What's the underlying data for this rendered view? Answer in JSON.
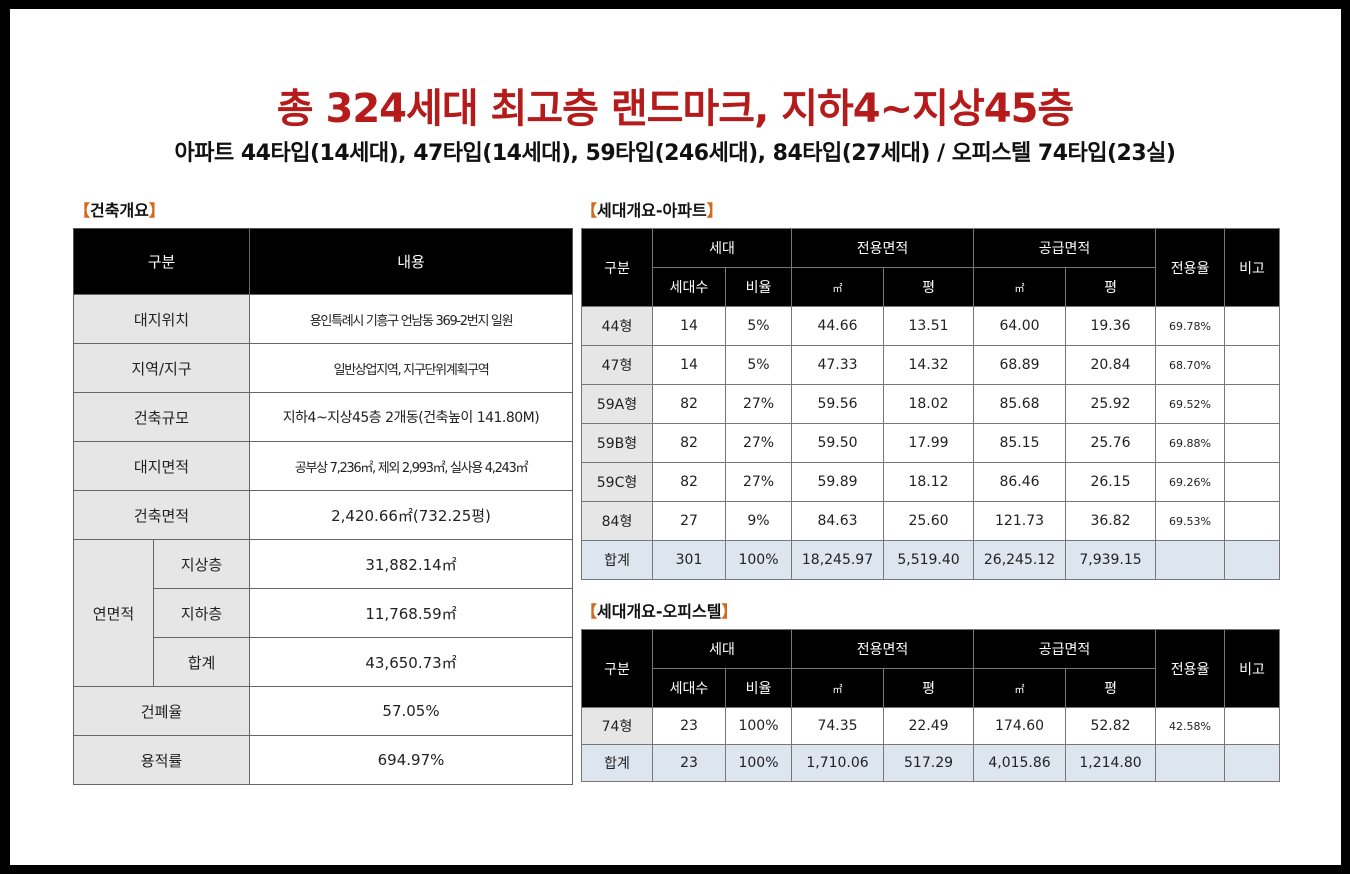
{
  "title": "총 324세대 최고층 랜드마크, 지하4~지상45층",
  "subtitle": "아파트 44타입(14세대), 47타입(14세대), 59타입(246세대), 84타입(27세대) / 오피스텔 74타입(23실)",
  "building": {
    "heading": "건축개요",
    "headers": [
      "구분",
      "내용"
    ],
    "site_location": {
      "label": "대지위치",
      "value": "용인특례시 기흥구 언남동 369-2번지 일원"
    },
    "zone": {
      "label": "지역/지구",
      "value": "일반상업지역, 지구단위계획구역"
    },
    "scale": {
      "label": "건축규모",
      "value": "지하4~지상45층 2개동(건축높이 141.80M)"
    },
    "site_area": {
      "label": "대지면적",
      "value": "공부상 7,236㎡, 제외 2,993㎡, 실사용 4,243㎡"
    },
    "building_area": {
      "label": "건축면적",
      "value": "2,420.66㎡(732.25평)"
    },
    "floor_area": {
      "label": "연면적",
      "above": {
        "label": "지상층",
        "value": "31,882.14㎡"
      },
      "below": {
        "label": "지하층",
        "value": "11,768.59㎡"
      },
      "total": {
        "label": "합계",
        "value": "43,650.73㎡"
      }
    },
    "coverage": {
      "label": "건폐율",
      "value": "57.05%"
    },
    "far": {
      "label": "용적률",
      "value": "694.97%"
    }
  },
  "apartment": {
    "heading": "세대개요-아파트",
    "headers": {
      "type": "구분",
      "household": "세대",
      "exclusive": "전용면적",
      "supply": "공급면적",
      "ratio": "전용율",
      "note": "비고",
      "count": "세대수",
      "share": "비율",
      "m2": "㎡",
      "pyeong": "평"
    },
    "rows": [
      {
        "type": "44형",
        "count": "14",
        "share": "5%",
        "ex_m2": "44.66",
        "ex_py": "13.51",
        "sup_m2": "64.00",
        "sup_py": "19.36",
        "ratio": "69.78%",
        "note": ""
      },
      {
        "type": "47형",
        "count": "14",
        "share": "5%",
        "ex_m2": "47.33",
        "ex_py": "14.32",
        "sup_m2": "68.89",
        "sup_py": "20.84",
        "ratio": "68.70%",
        "note": ""
      },
      {
        "type": "59A형",
        "count": "82",
        "share": "27%",
        "ex_m2": "59.56",
        "ex_py": "18.02",
        "sup_m2": "85.68",
        "sup_py": "25.92",
        "ratio": "69.52%",
        "note": ""
      },
      {
        "type": "59B형",
        "count": "82",
        "share": "27%",
        "ex_m2": "59.50",
        "ex_py": "17.99",
        "sup_m2": "85.15",
        "sup_py": "25.76",
        "ratio": "69.88%",
        "note": ""
      },
      {
        "type": "59C형",
        "count": "82",
        "share": "27%",
        "ex_m2": "59.89",
        "ex_py": "18.12",
        "sup_m2": "86.46",
        "sup_py": "26.15",
        "ratio": "69.26%",
        "note": ""
      },
      {
        "type": "84형",
        "count": "27",
        "share": "9%",
        "ex_m2": "84.63",
        "ex_py": "25.60",
        "sup_m2": "121.73",
        "sup_py": "36.82",
        "ratio": "69.53%",
        "note": ""
      }
    ],
    "total": {
      "type": "합계",
      "count": "301",
      "share": "100%",
      "ex_m2": "18,245.97",
      "ex_py": "5,519.40",
      "sup_m2": "26,245.12",
      "sup_py": "7,939.15",
      "ratio": "",
      "note": ""
    }
  },
  "officetel": {
    "heading": "세대개요-오피스텔",
    "headers": {
      "type": "구분",
      "household": "세대",
      "exclusive": "전용면적",
      "supply": "공급면적",
      "ratio": "전용율",
      "note": "비고",
      "count": "세대수",
      "share": "비율",
      "m2": "㎡",
      "pyeong": "평"
    },
    "rows": [
      {
        "type": "74형",
        "count": "23",
        "share": "100%",
        "ex_m2": "74.35",
        "ex_py": "22.49",
        "sup_m2": "174.60",
        "sup_py": "52.82",
        "ratio": "42.58%",
        "note": ""
      }
    ],
    "total": {
      "type": "합계",
      "count": "23",
      "share": "100%",
      "ex_m2": "1,710.06",
      "ex_py": "517.29",
      "sup_m2": "4,015.86",
      "sup_py": "1,214.80",
      "ratio": "",
      "note": ""
    }
  },
  "colors": {
    "title": "#b51b1b",
    "bracket": "#d26a1e",
    "header_bg": "#000000",
    "label_bg": "#e6e6e6",
    "total_bg": "#dde5ef"
  }
}
